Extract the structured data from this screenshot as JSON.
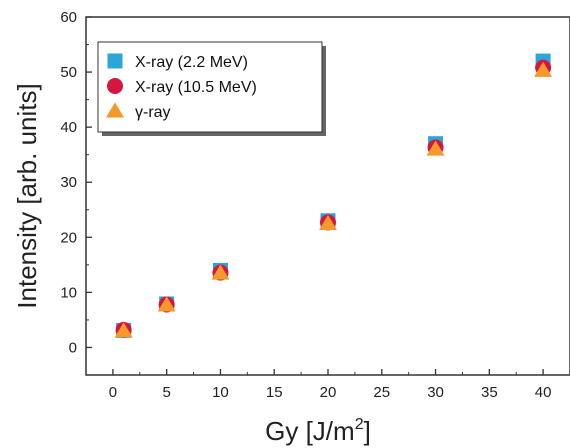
{
  "chart_data": {
    "type": "scatter",
    "xlabel": "Gy [J/m",
    "xlabel_sup": "2",
    "xlabel_tail": "]",
    "ylabel": "Intensity [arb. units]",
    "xlim": [
      -2.5,
      42.5
    ],
    "ylim": [
      -5,
      60
    ],
    "x_ticks": [
      0,
      5,
      10,
      15,
      20,
      25,
      30,
      35,
      40
    ],
    "y_ticks": [
      0,
      10,
      20,
      30,
      40,
      50,
      60
    ],
    "grid": false,
    "legend_position": "top-left",
    "series": [
      {
        "name": "X-ray (2.2 MeV)",
        "marker": "square",
        "color": "#2aa6d8",
        "points": [
          [
            1,
            3.1
          ],
          [
            5,
            7.9
          ],
          [
            10,
            14.0
          ],
          [
            20,
            23.0
          ],
          [
            30,
            37.0
          ],
          [
            40,
            52.0
          ]
        ]
      },
      {
        "name": "X-ray (10.5 MeV)",
        "marker": "circle",
        "color": "#d6163f",
        "points": [
          [
            1,
            3.2
          ],
          [
            5,
            7.8
          ],
          [
            10,
            13.6
          ],
          [
            20,
            22.7
          ],
          [
            30,
            36.3
          ],
          [
            40,
            50.8
          ]
        ]
      },
      {
        "name": "γ-ray",
        "marker": "triangle",
        "color": "#f39a2b",
        "points": [
          [
            1,
            3.0
          ],
          [
            5,
            7.7
          ],
          [
            10,
            13.5
          ],
          [
            20,
            22.5
          ],
          [
            30,
            36.0
          ],
          [
            40,
            50.3
          ]
        ]
      }
    ]
  }
}
